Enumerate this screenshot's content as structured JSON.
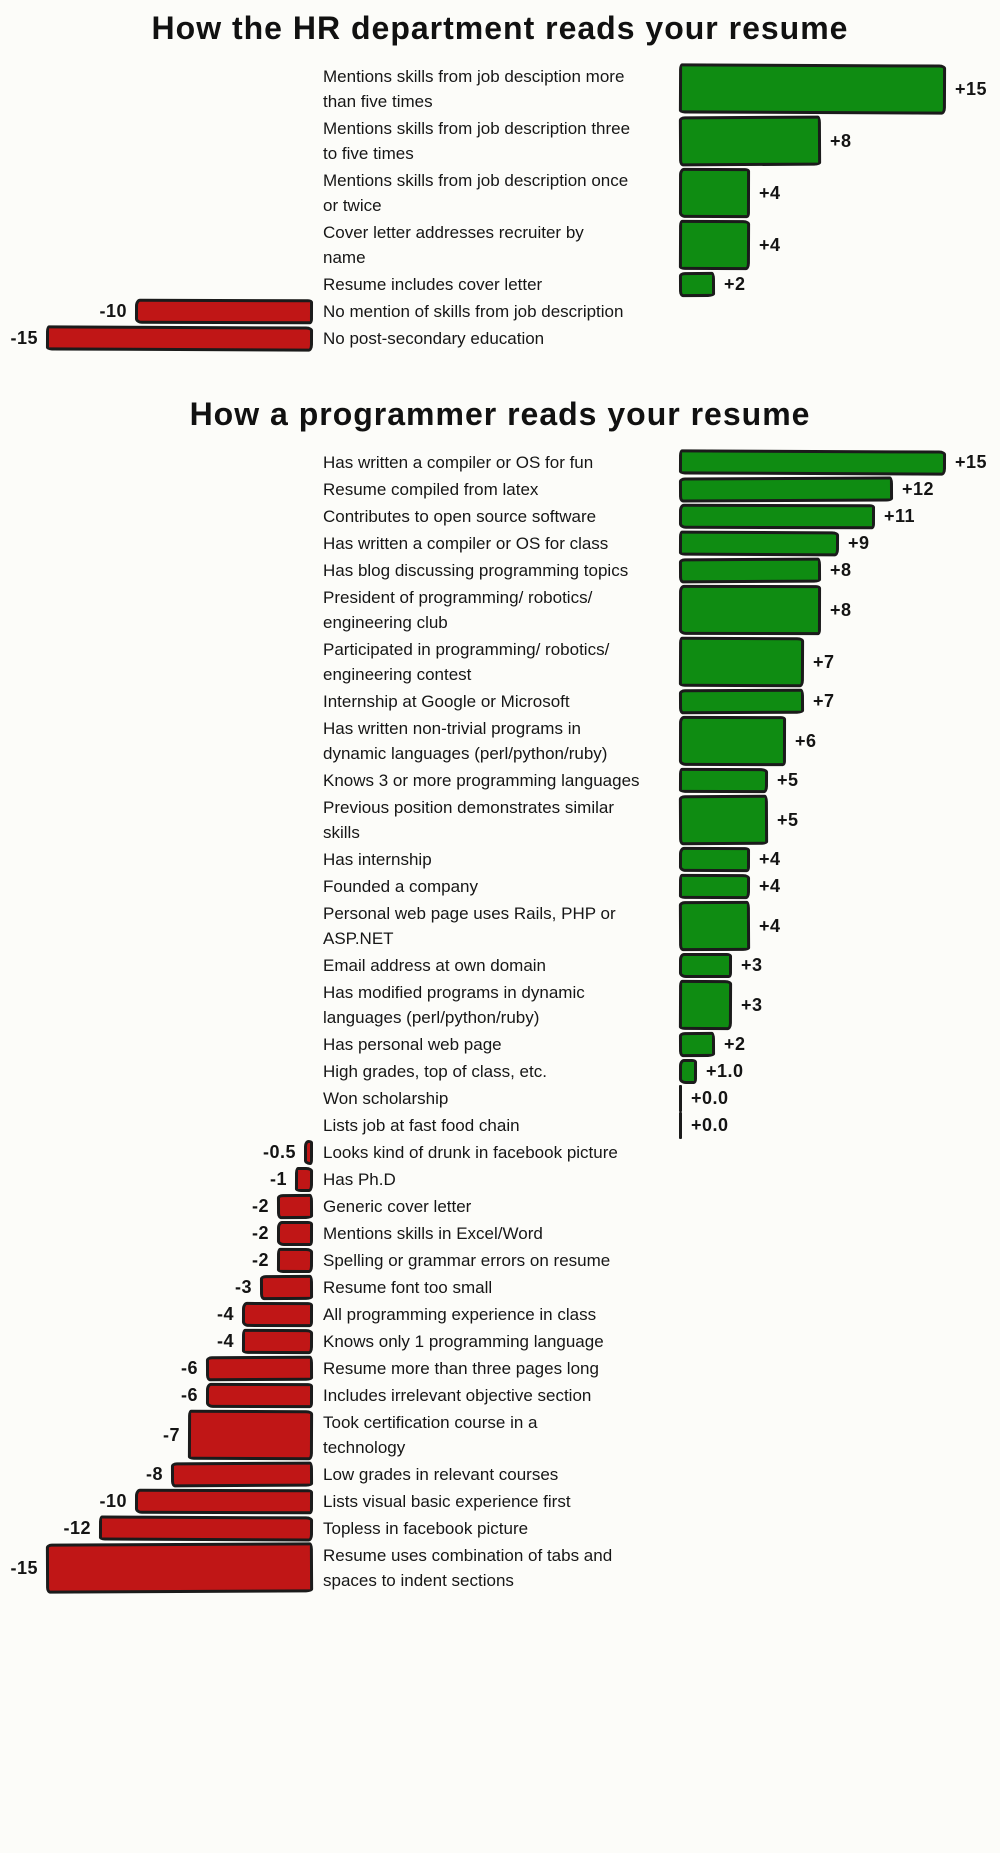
{
  "page": {
    "background": "#fcfcf9",
    "outline_color": "#1b1b1b"
  },
  "chart_data": [
    {
      "type": "bar",
      "orientation": "horizontal",
      "title": "How the HR department reads your resume",
      "xlabel": "",
      "ylabel": "",
      "xlim": [
        -15,
        15
      ],
      "grid": false,
      "legend": false,
      "positive_color": "#0f8c12",
      "negative_color": "#c01616",
      "items": [
        {
          "label": "Mentions skills from job desciption more\nthan five times",
          "value": 15,
          "display": "+15"
        },
        {
          "label": "Mentions skills from job description three\nto five times",
          "value": 8,
          "display": "+8"
        },
        {
          "label": "Mentions skills from job description once\nor twice",
          "value": 4,
          "display": "+4"
        },
        {
          "label": "Cover letter addresses recruiter by\nname",
          "value": 4,
          "display": "+4"
        },
        {
          "label": "Resume includes cover letter",
          "value": 2,
          "display": "+2"
        },
        {
          "label": "No mention of skills from job description",
          "value": -10,
          "display": "-10"
        },
        {
          "label": "No post-secondary education",
          "value": -15,
          "display": "-15"
        }
      ]
    },
    {
      "type": "bar",
      "orientation": "horizontal",
      "title": "How a programmer reads your resume",
      "xlabel": "",
      "ylabel": "",
      "xlim": [
        -15,
        15
      ],
      "grid": false,
      "legend": false,
      "positive_color": "#0f8c12",
      "negative_color": "#c01616",
      "items": [
        {
          "label": "Has written a compiler or OS for fun",
          "value": 15,
          "display": "+15"
        },
        {
          "label": "Resume compiled from latex",
          "value": 12,
          "display": "+12"
        },
        {
          "label": "Contributes to open source software",
          "value": 11,
          "display": "+11"
        },
        {
          "label": "Has written a compiler or OS for class",
          "value": 9,
          "display": "+9"
        },
        {
          "label": "Has blog discussing programming topics",
          "value": 8,
          "display": "+8"
        },
        {
          "label": "President of programming/ robotics/\nengineering club",
          "value": 8,
          "display": "+8"
        },
        {
          "label": "Participated in programming/ robotics/\nengineering contest",
          "value": 7,
          "display": "+7"
        },
        {
          "label": "Internship at Google or Microsoft",
          "value": 7,
          "display": "+7"
        },
        {
          "label": "Has written non-trivial programs in\ndynamic languages (perl/python/ruby)",
          "value": 6,
          "display": "+6"
        },
        {
          "label": "Knows 3 or more programming languages",
          "value": 5,
          "display": "+5"
        },
        {
          "label": "Previous position demonstrates similar\nskills",
          "value": 5,
          "display": "+5"
        },
        {
          "label": "Has internship",
          "value": 4,
          "display": "+4"
        },
        {
          "label": "Founded a company",
          "value": 4,
          "display": "+4"
        },
        {
          "label": "Personal web page uses Rails, PHP or\nASP.NET",
          "value": 4,
          "display": "+4"
        },
        {
          "label": "Email address at own domain",
          "value": 3,
          "display": "+3"
        },
        {
          "label": "Has modified programs in dynamic\nlanguages (perl/python/ruby)",
          "value": 3,
          "display": "+3"
        },
        {
          "label": "Has personal web page",
          "value": 2,
          "display": "+2"
        },
        {
          "label": "High grades, top of class, etc.",
          "value": 1,
          "display": "+1.0"
        },
        {
          "label": "Won scholarship",
          "value": 0,
          "display": "+0.0"
        },
        {
          "label": "Lists job at fast food chain",
          "value": 0,
          "display": "+0.0"
        },
        {
          "label": "Looks kind of drunk in facebook picture",
          "value": -0.5,
          "display": "-0.5"
        },
        {
          "label": "Has Ph.D",
          "value": -1,
          "display": "-1"
        },
        {
          "label": "Generic cover letter",
          "value": -2,
          "display": "-2"
        },
        {
          "label": "Mentions skills in Excel/Word",
          "value": -2,
          "display": "-2"
        },
        {
          "label": "Spelling or grammar errors on resume",
          "value": -2,
          "display": "-2"
        },
        {
          "label": "Resume font too small",
          "value": -3,
          "display": "-3"
        },
        {
          "label": "All programming experience in class",
          "value": -4,
          "display": "-4"
        },
        {
          "label": "Knows only 1 programming language",
          "value": -4,
          "display": "-4"
        },
        {
          "label": "Resume more than three pages long",
          "value": -6,
          "display": "-6"
        },
        {
          "label": "Includes irrelevant objective section",
          "value": -6,
          "display": "-6"
        },
        {
          "label": "Took certification course in a\ntechnology",
          "value": -7,
          "display": "-7"
        },
        {
          "label": "Low grades in relevant courses",
          "value": -8,
          "display": "-8"
        },
        {
          "label": "Lists visual basic experience first",
          "value": -10,
          "display": "-10"
        },
        {
          "label": "Topless in facebook picture",
          "value": -12,
          "display": "-12"
        },
        {
          "label": "Resume uses combination of tabs and\nspaces to indent sections",
          "value": -15,
          "display": "-15"
        }
      ]
    }
  ]
}
